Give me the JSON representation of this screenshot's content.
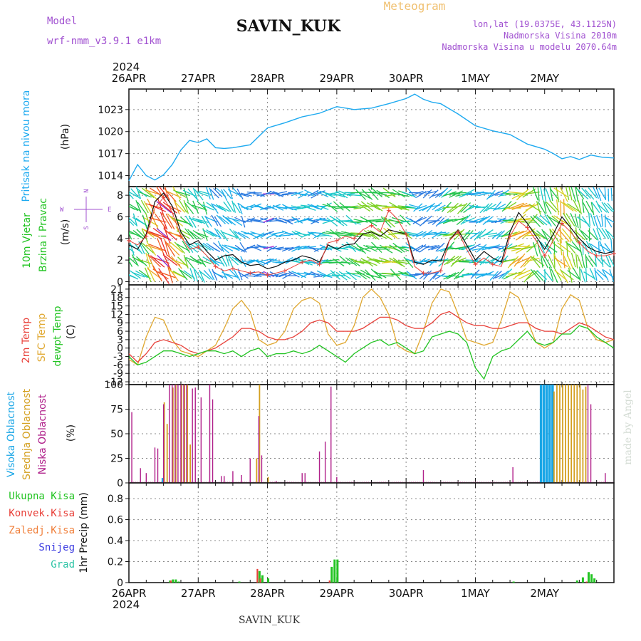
{
  "header": {
    "model_label": "Model",
    "model_name": "wrf-nmm_v3.9.1 e1km",
    "station": "SAVIN_KUK",
    "product": "Meteogram",
    "lonlat": "lon,lat (19.0375E, 43.1125N)",
    "elev": "Nadmorska Visina 2010m",
    "elev_model": "Nadmorska Visina u modelu 2070.64m",
    "footer_station": "SAVIN_KUK",
    "credit": "made by Angel"
  },
  "time_axis": {
    "year": "2024",
    "labels": [
      "26APR",
      "27APR",
      "28APR",
      "29APR",
      "30APR",
      "1MAY",
      "2MAY"
    ]
  },
  "colors": {
    "pressure": "#1eaaf0",
    "temp2m": "#e8413a",
    "sfc": "#e0a830",
    "dewpt": "#22c422",
    "high_cloud": "#1aa6e6",
    "mid_cloud": "#d4a020",
    "low_cloud": "#b0208a",
    "precip_total": "#22c422",
    "precip_conv": "#e8413a",
    "frozen": "#f0803c",
    "snow": "#3a3ae0",
    "hail": "#2ec4a6",
    "model": "#a050d0",
    "meteogram": "#f0c070"
  },
  "chart_data": [
    {
      "type": "line",
      "panel": "pressure",
      "ylabel": [
        "Pritisak na nivou mora",
        "(hPa)"
      ],
      "yticks": [
        1014,
        1017,
        1020,
        1023
      ],
      "ylim": [
        1012.5,
        1025.8
      ],
      "x_hours": [
        0,
        3,
        6,
        9,
        12,
        15,
        18,
        21,
        24,
        27,
        30,
        33,
        36,
        42,
        48,
        54,
        60,
        66,
        72,
        78,
        84,
        90,
        96,
        99,
        102,
        105,
        108,
        114,
        120,
        126,
        132,
        138,
        144,
        147,
        150,
        153,
        156,
        160,
        164,
        168
      ],
      "values": [
        1013.3,
        1015.5,
        1014.0,
        1013.4,
        1014.1,
        1015.5,
        1017.5,
        1018.8,
        1018.5,
        1019.0,
        1017.8,
        1017.7,
        1017.8,
        1018.2,
        1020.5,
        1021.2,
        1022.0,
        1022.5,
        1023.4,
        1023.0,
        1023.2,
        1023.8,
        1024.5,
        1025.1,
        1024.4,
        1024.0,
        1023.8,
        1022.4,
        1020.8,
        1020.1,
        1019.6,
        1018.3,
        1017.6,
        1017.0,
        1016.3,
        1016.6,
        1016.2,
        1016.8,
        1016.5,
        1016.4
      ]
    },
    {
      "type": "line",
      "panel": "wind",
      "ylabel": [
        "10m Vjetar",
        "Brzina i Pravac",
        "(m/s)"
      ],
      "compass": {
        "n": "N",
        "s": "S",
        "e": "E",
        "w": "W"
      },
      "yticks": [
        0,
        2,
        4,
        6,
        8
      ],
      "ylim": [
        -0.3,
        8.8
      ],
      "x_hours": [
        0,
        3,
        6,
        9,
        12,
        15,
        18,
        21,
        24,
        27,
        30,
        33,
        36,
        39,
        42,
        45,
        48,
        51,
        54,
        57,
        60,
        63,
        66,
        69,
        72,
        75,
        78,
        81,
        84,
        87,
        90,
        93,
        96,
        99,
        102,
        105,
        108,
        111,
        114,
        117,
        120,
        123,
        126,
        129,
        132,
        135,
        138,
        141,
        144,
        147,
        150,
        153,
        156,
        159,
        162,
        165,
        168
      ],
      "values": [
        3.4,
        3.0,
        4.4,
        7.4,
        8.2,
        7.0,
        4.6,
        3.4,
        3.8,
        2.8,
        2.0,
        2.4,
        2.5,
        1.8,
        1.5,
        1.6,
        1.2,
        1.4,
        1.8,
        2.0,
        2.4,
        2.2,
        1.8,
        3.4,
        3.0,
        3.4,
        3.5,
        4.4,
        4.6,
        4.2,
        4.8,
        4.6,
        4.4,
        1.8,
        1.6,
        2.0,
        1.9,
        3.8,
        4.8,
        3.4,
        2.0,
        2.8,
        2.2,
        1.8,
        4.6,
        6.4,
        5.4,
        4.2,
        3.0,
        4.4,
        6.0,
        5.0,
        4.0,
        3.2,
        2.8,
        2.6,
        2.8
      ],
      "gust": [
        3.8,
        3.4,
        4.2,
        6.8,
        7.8,
        6.4,
        4.2,
        3.0,
        3.2,
        2.4,
        1.4,
        1.0,
        1.2,
        1.0,
        0.8,
        0.9,
        0.6,
        0.8,
        1.0,
        1.4,
        1.8,
        2.0,
        1.6,
        3.6,
        3.8,
        4.2,
        4.0,
        4.8,
        5.2,
        4.6,
        6.6,
        5.8,
        4.4,
        1.4,
        0.8,
        0.8,
        1.0,
        3.8,
        4.6,
        3.0,
        1.6,
        2.2,
        1.6,
        1.4,
        4.2,
        5.6,
        5.0,
        3.8,
        2.4,
        3.8,
        5.4,
        4.6,
        3.6,
        2.8,
        2.4,
        2.4,
        2.6
      ]
    },
    {
      "type": "line",
      "panel": "temperature",
      "ylabel": [
        "2m Temp",
        "SFC Temp",
        "dewpt Temp",
        "(C)"
      ],
      "yticks": [
        -12,
        -9,
        -6,
        -3,
        0,
        3,
        6,
        9,
        12,
        15,
        18,
        21
      ],
      "ylim": [
        -13,
        22.5
      ],
      "x_hours": [
        0,
        3,
        6,
        9,
        12,
        15,
        18,
        21,
        24,
        27,
        30,
        33,
        36,
        39,
        42,
        45,
        48,
        51,
        54,
        57,
        60,
        63,
        66,
        69,
        72,
        75,
        78,
        81,
        84,
        87,
        90,
        93,
        96,
        99,
        102,
        105,
        108,
        111,
        114,
        117,
        120,
        123,
        126,
        129,
        132,
        135,
        138,
        141,
        144,
        147,
        150,
        153,
        156,
        159,
        162,
        165,
        168
      ],
      "t2m": [
        -2,
        -5,
        -2,
        2,
        3,
        2,
        1,
        -1,
        -2,
        -1,
        0,
        2,
        4,
        7,
        7,
        6,
        4,
        3,
        3,
        4,
        6,
        9,
        10,
        9,
        6,
        6,
        6,
        7,
        9,
        11,
        11,
        10,
        8,
        7,
        7,
        9,
        12,
        13,
        11,
        9,
        8,
        8,
        7,
        7,
        8,
        9,
        9,
        7,
        6,
        6,
        5,
        7,
        9,
        8,
        6,
        4,
        3
      ],
      "sfc": [
        -4,
        -6,
        4,
        11,
        10,
        3,
        -1,
        -2,
        -3,
        -1,
        1,
        7,
        14,
        17,
        13,
        3,
        1,
        2,
        6,
        14,
        17,
        18,
        16,
        5,
        1,
        2,
        8,
        18,
        21,
        18,
        12,
        1,
        -1,
        -2,
        6,
        16,
        21,
        20,
        12,
        3,
        2,
        1,
        2,
        10,
        20,
        18,
        10,
        2,
        0,
        2,
        14,
        19,
        17,
        7,
        3,
        2,
        3
      ],
      "dewpt": [
        -3,
        -6,
        -5,
        -3,
        -1,
        -1,
        -2,
        -3,
        -2,
        -1,
        -1,
        -2,
        -1,
        -3,
        -1,
        0,
        -3,
        -2,
        -2,
        -1,
        -2,
        -1,
        1,
        -1,
        -3,
        -5,
        -2,
        0,
        2,
        3,
        1,
        2,
        0,
        -2,
        -1,
        4,
        5,
        6,
        5,
        2,
        -7,
        -11,
        -3,
        -1,
        0,
        3,
        6,
        2,
        1,
        2,
        5,
        5,
        8,
        7,
        4,
        2,
        0
      ]
    },
    {
      "type": "bar",
      "panel": "clouds",
      "ylabel": [
        "Visoka Oblacnost",
        "Srednja Oblacnost",
        "Niska Oblacnost",
        "(%)"
      ],
      "yticks": [
        0,
        25,
        50,
        75,
        100
      ],
      "ylim": [
        0,
        100
      ],
      "low": [
        [
          1,
          72
        ],
        [
          4,
          15
        ],
        [
          6,
          10
        ],
        [
          9,
          36
        ],
        [
          10,
          35
        ],
        [
          12,
          80
        ],
        [
          14,
          100
        ],
        [
          15,
          100
        ],
        [
          16,
          100
        ],
        [
          17,
          100
        ],
        [
          18,
          100
        ],
        [
          19,
          100
        ],
        [
          20,
          100
        ],
        [
          22,
          96
        ],
        [
          23,
          97
        ],
        [
          25,
          87
        ],
        [
          28,
          100
        ],
        [
          29,
          85
        ],
        [
          32,
          7
        ],
        [
          33,
          7
        ],
        [
          36,
          12
        ],
        [
          39,
          8
        ],
        [
          42,
          25
        ],
        [
          45,
          68
        ],
        [
          46,
          28
        ],
        [
          51,
          2
        ],
        [
          60,
          10
        ],
        [
          61,
          10
        ],
        [
          66,
          32
        ],
        [
          68,
          42
        ],
        [
          70,
          98
        ],
        [
          72,
          6
        ],
        [
          102,
          13
        ],
        [
          133,
          16
        ],
        [
          159,
          100
        ],
        [
          160,
          80
        ],
        [
          165,
          10
        ]
      ],
      "mid": [
        [
          12,
          82
        ],
        [
          13,
          60
        ],
        [
          15,
          97
        ],
        [
          16,
          100
        ],
        [
          18,
          100
        ],
        [
          19,
          100
        ],
        [
          20,
          100
        ],
        [
          21,
          39
        ],
        [
          44,
          25
        ],
        [
          45,
          100
        ],
        [
          48,
          6
        ],
        [
          147,
          93
        ],
        [
          148,
          100
        ],
        [
          149,
          100
        ],
        [
          150,
          100
        ],
        [
          151,
          100
        ],
        [
          152,
          100
        ],
        [
          153,
          100
        ],
        [
          154,
          100
        ],
        [
          155,
          100
        ],
        [
          156,
          100
        ],
        [
          157,
          95
        ],
        [
          158,
          98
        ]
      ],
      "high": [
        [
          12,
          5
        ],
        [
          143,
          100
        ],
        [
          144,
          100
        ],
        [
          145,
          100
        ],
        [
          146,
          100
        ],
        [
          147,
          100
        ]
      ]
    },
    {
      "type": "bar",
      "panel": "precip",
      "ylabel": [
        "1hr Precip (mm)"
      ],
      "legend": [
        "Ukupna Kisa",
        "Konvek.Kisa",
        "Zaledj.Kisa",
        "Snijeg",
        "Grad"
      ],
      "yticks": [
        0,
        0.2,
        0.4,
        0.6,
        0.8
      ],
      "ylim": [
        0,
        0.95
      ],
      "total": [
        [
          14,
          0.02
        ],
        [
          15,
          0.03
        ],
        [
          16,
          0.03
        ],
        [
          17,
          0.01
        ],
        [
          38,
          0.01
        ],
        [
          45,
          0.11
        ],
        [
          46,
          0.07
        ],
        [
          48,
          0.04
        ],
        [
          70,
          0.15
        ],
        [
          71,
          0.22
        ],
        [
          72,
          0.22
        ],
        [
          133,
          0.01
        ],
        [
          155,
          0.02
        ],
        [
          157,
          0.05
        ],
        [
          159,
          0.1
        ],
        [
          160,
          0.08
        ],
        [
          161,
          0.04
        ]
      ],
      "conv": [
        [
          15,
          0.02
        ],
        [
          45,
          0.13
        ],
        [
          46,
          0.04
        ],
        [
          70,
          0.02
        ],
        [
          159,
          0.01
        ]
      ]
    }
  ]
}
